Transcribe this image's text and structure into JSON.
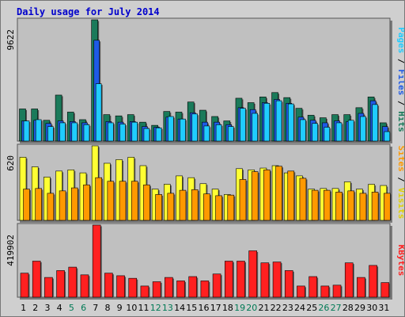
{
  "chart_data": [
    {
      "type": "bar",
      "panel": "hits-files-pages",
      "title": "Daily usage for July 2014",
      "categories": [
        "1",
        "2",
        "3",
        "4",
        "5",
        "6",
        "7",
        "8",
        "9",
        "10",
        "11",
        "12",
        "13",
        "14",
        "15",
        "16",
        "17",
        "18",
        "19",
        "20",
        "21",
        "22",
        "23",
        "24",
        "25",
        "26",
        "27",
        "28",
        "29",
        "30",
        "31"
      ],
      "weekend_days": [
        "5",
        "6",
        "12",
        "13",
        "19",
        "20",
        "26",
        "27"
      ],
      "ymax": 9622,
      "ylabel": "9622",
      "series": [
        {
          "name": "Hits",
          "color": "#1a7a5a",
          "values": [
            2550,
            2550,
            1650,
            3650,
            2300,
            1700,
            9622,
            2100,
            2000,
            2100,
            1500,
            1250,
            2350,
            2300,
            3100,
            2450,
            1950,
            1600,
            3400,
            3050,
            3500,
            3850,
            3450,
            2600,
            2050,
            1850,
            2100,
            2100,
            2650,
            3500,
            1450
          ]
        },
        {
          "name": "Files",
          "color": "#1e5ae6",
          "values": [
            1600,
            1650,
            1400,
            1600,
            1550,
            1450,
            8000,
            1550,
            1500,
            1550,
            1150,
            1100,
            1900,
            1750,
            2250,
            1500,
            1500,
            1300,
            2650,
            2500,
            3050,
            3300,
            3000,
            1900,
            1650,
            1450,
            1600,
            1550,
            2200,
            3200,
            1150
          ]
        },
        {
          "name": "Pages",
          "color": "#20ccff",
          "values": [
            1600,
            1700,
            1150,
            1450,
            1450,
            1300,
            4550,
            1450,
            1350,
            1500,
            1000,
            1050,
            1950,
            1750,
            2150,
            1200,
            1300,
            1150,
            2600,
            2200,
            3000,
            3200,
            2950,
            1700,
            1400,
            1100,
            1450,
            1650,
            1950,
            2900,
            750
          ]
        }
      ],
      "legend": "right-vertical"
    },
    {
      "type": "bar",
      "panel": "sites-visits",
      "categories": [
        "1",
        "2",
        "3",
        "4",
        "5",
        "6",
        "7",
        "8",
        "9",
        "10",
        "11",
        "12",
        "13",
        "14",
        "15",
        "16",
        "17",
        "18",
        "19",
        "20",
        "21",
        "22",
        "23",
        "24",
        "25",
        "26",
        "27",
        "28",
        "29",
        "30",
        "31"
      ],
      "ymax": 620,
      "ylabel": "620",
      "series": [
        {
          "name": "Visits",
          "color": "#ffff33",
          "values": [
            525,
            445,
            360,
            410,
            420,
            395,
            620,
            475,
            505,
            525,
            455,
            260,
            300,
            370,
            355,
            305,
            260,
            215,
            430,
            420,
            435,
            455,
            395,
            370,
            260,
            265,
            265,
            320,
            260,
            300,
            290
          ]
        },
        {
          "name": "Sites",
          "color": "#ff9900",
          "values": [
            260,
            265,
            225,
            245,
            270,
            295,
            355,
            325,
            325,
            325,
            295,
            215,
            225,
            250,
            255,
            220,
            205,
            210,
            340,
            405,
            420,
            450,
            410,
            350,
            250,
            250,
            235,
            245,
            225,
            235,
            225
          ]
        }
      ],
      "legend": "right-vertical"
    },
    {
      "type": "bar",
      "panel": "kbytes",
      "categories": [
        "1",
        "2",
        "3",
        "4",
        "5",
        "6",
        "7",
        "8",
        "9",
        "10",
        "11",
        "12",
        "13",
        "14",
        "15",
        "16",
        "17",
        "18",
        "19",
        "20",
        "21",
        "22",
        "23",
        "24",
        "25",
        "26",
        "27",
        "28",
        "29",
        "30",
        "31"
      ],
      "ymax": 419902,
      "ylabel": "419902",
      "series": [
        {
          "name": "KBytes",
          "color": "#ff2020",
          "values": [
            140000,
            210000,
            115000,
            155000,
            175000,
            130000,
            419902,
            140000,
            125000,
            110000,
            65000,
            90000,
            115000,
            95000,
            120000,
            95000,
            135000,
            210000,
            210000,
            270000,
            200000,
            205000,
            155000,
            65000,
            120000,
            65000,
            70000,
            200000,
            115000,
            185000,
            85000
          ]
        }
      ],
      "legend": "right-vertical"
    }
  ]
}
